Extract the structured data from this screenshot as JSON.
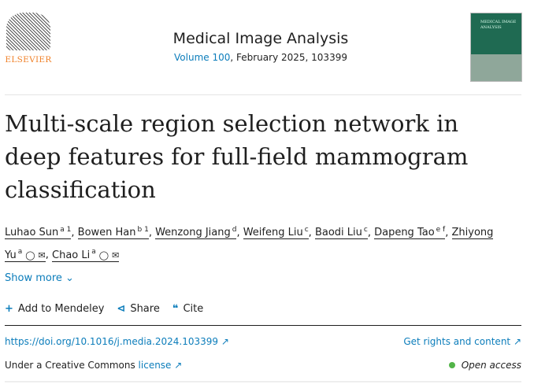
{
  "publisher": {
    "name": "ELSEVIER"
  },
  "journal": {
    "title": "Medical Image Analysis",
    "volume_link": "Volume 100",
    "issue_info": ", February 2025, 103399",
    "cover_text": "MEDICAL IMAGE ANALYSIS"
  },
  "article": {
    "title": "Multi-scale region selection network in deep features for full-field mammogram classification"
  },
  "authors": [
    {
      "name": "Luhao Sun",
      "sup": "a 1"
    },
    {
      "name": "Bowen Han",
      "sup": "b 1"
    },
    {
      "name": "Wenzong Jiang",
      "sup": "d"
    },
    {
      "name": "Weifeng Liu",
      "sup": "c"
    },
    {
      "name": "Baodi Liu",
      "sup": "c"
    },
    {
      "name": "Dapeng Tao",
      "sup": "e f"
    },
    {
      "name": "Zhiyong Yu",
      "sup": "a"
    },
    {
      "name": "Chao Li",
      "sup": "a"
    }
  ],
  "show_more": "Show more",
  "actions": {
    "mendeley": "Add to Mendeley",
    "share": "Share",
    "cite": "Cite"
  },
  "doi": "https://doi.org/10.1016/j.media.2024.103399 ↗",
  "rights": "Get rights and content ↗",
  "license_prefix": "Under a Creative Commons ",
  "license_link": "license ↗",
  "open_access": "Open access",
  "colors": {
    "link": "#0c7dbb",
    "elsevier": "#f0822a",
    "open_access": "#52b448"
  }
}
